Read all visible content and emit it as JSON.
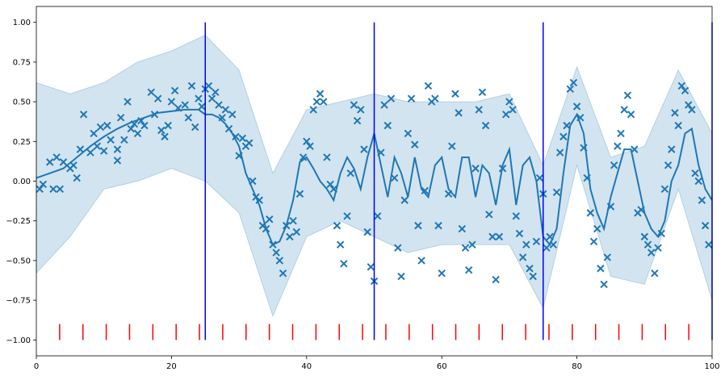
{
  "chart_data": {
    "type": "scatter",
    "xlim": [
      0,
      100
    ],
    "ylim": [
      -1.1,
      1.1
    ],
    "xticks": [
      0,
      20,
      40,
      60,
      80,
      100
    ],
    "yticks": [
      {
        "value": 1,
        "label": "1.00"
      },
      {
        "value": 0.75,
        "label": "0.75"
      },
      {
        "value": 0.5,
        "label": "0.50"
      },
      {
        "value": 0.25,
        "label": "0.25"
      },
      {
        "value": 0,
        "label": "0.00"
      },
      {
        "value": -0.25,
        "label": "−0.25"
      },
      {
        "value": -0.5,
        "label": "−0.50"
      },
      {
        "value": -0.75,
        "label": "−0.75"
      },
      {
        "value": -1,
        "label": "−1.00"
      }
    ],
    "band": {
      "color": "#1f77b4",
      "x": [
        0,
        5,
        10,
        15,
        20,
        25,
        30,
        35,
        40,
        45,
        50,
        55,
        60,
        65,
        70,
        75,
        80,
        85,
        90,
        95,
        100
      ],
      "upper": [
        0.62,
        0.55,
        0.62,
        0.75,
        0.82,
        0.92,
        0.7,
        0.05,
        0.45,
        0.5,
        0.55,
        0.5,
        0.5,
        0.5,
        0.55,
        0.1,
        0.72,
        0.15,
        0.22,
        0.7,
        0.3
      ],
      "lower": [
        -0.58,
        -0.35,
        -0.05,
        0.0,
        0.08,
        0.0,
        -0.2,
        -0.85,
        -0.35,
        -0.25,
        -0.35,
        -0.45,
        -0.4,
        -0.4,
        -0.4,
        -0.8,
        0.1,
        -0.6,
        -0.65,
        -0.05,
        -0.75
      ]
    },
    "mean": {
      "color": "#1f77b4",
      "x": [
        0,
        2,
        4,
        6,
        8,
        10,
        12,
        14,
        16,
        18,
        20,
        22,
        24,
        25,
        26,
        27,
        28,
        29,
        30,
        31,
        32,
        33,
        34,
        35,
        36,
        37,
        38,
        39,
        40,
        41,
        42,
        43,
        44,
        45,
        46,
        47,
        48,
        49,
        50,
        51,
        52,
        53,
        54,
        55,
        56,
        57,
        58,
        59,
        60,
        61,
        62,
        63,
        64,
        65,
        66,
        67,
        68,
        69,
        70,
        71,
        72,
        73,
        74,
        75,
        76,
        77,
        78,
        79,
        80,
        81,
        82,
        83,
        84,
        85,
        86,
        87,
        88,
        89,
        90,
        91,
        92,
        93,
        94,
        95,
        96,
        97,
        98,
        99,
        100
      ],
      "y": [
        0.02,
        0.05,
        0.08,
        0.15,
        0.22,
        0.28,
        0.33,
        0.37,
        0.4,
        0.43,
        0.44,
        0.45,
        0.45,
        0.42,
        0.42,
        0.4,
        0.36,
        0.3,
        0.22,
        0.05,
        -0.05,
        -0.15,
        -0.3,
        -0.4,
        -0.38,
        -0.28,
        -0.12,
        0.12,
        0.15,
        0.08,
        0.0,
        -0.05,
        -0.12,
        0.05,
        0.15,
        0.08,
        -0.05,
        0.15,
        0.3,
        0.1,
        -0.1,
        0.15,
        0.05,
        -0.1,
        0.15,
        -0.05,
        -0.1,
        0.1,
        0.15,
        -0.05,
        -0.1,
        0.15,
        0.15,
        -0.1,
        0.1,
        0.05,
        -0.15,
        0.1,
        0.2,
        -0.15,
        0.1,
        0.15,
        0.0,
        -0.35,
        -0.4,
        -0.3,
        0.05,
        0.35,
        0.42,
        0.3,
        -0.05,
        -0.2,
        -0.3,
        -0.1,
        0.05,
        0.2,
        0.2,
        0.0,
        -0.2,
        -0.3,
        -0.35,
        -0.25,
        0.0,
        0.1,
        0.3,
        0.33,
        0.1,
        -0.05,
        -0.12
      ]
    },
    "points": {
      "color": "#1f77b4",
      "x": [
        0.5,
        1,
        2,
        2.5,
        3,
        3.5,
        4,
        5,
        5.5,
        6,
        6.5,
        7,
        8,
        8.5,
        9,
        9.5,
        10,
        10.5,
        11,
        12,
        12,
        12.5,
        13,
        13.5,
        14,
        14.5,
        15,
        15.5,
        16,
        17,
        17.5,
        18,
        18.5,
        19,
        19.5,
        20,
        20.5,
        21,
        22,
        22.5,
        23,
        23.5,
        24,
        24.5,
        25,
        25.5,
        26,
        26.5,
        27,
        27.5,
        28,
        28.5,
        29,
        29.5,
        30,
        30.5,
        31,
        31.5,
        32,
        32.5,
        33,
        33.5,
        34,
        34.5,
        35,
        35.5,
        36,
        36.5,
        37,
        37.5,
        38,
        38.5,
        39,
        39.5,
        40,
        40.5,
        41,
        41.5,
        42,
        42.5,
        43,
        43.5,
        44,
        44.5,
        45,
        45.5,
        46,
        46.5,
        47,
        47.5,
        48,
        48.5,
        49,
        49.5,
        50,
        50.5,
        51,
        51.5,
        52,
        52.5,
        53,
        53.5,
        54,
        54.5,
        55,
        55.5,
        56,
        56.5,
        57,
        57.5,
        58,
        58.5,
        59,
        59.5,
        60,
        61,
        61.5,
        62,
        62.5,
        63,
        63.5,
        64,
        64.5,
        65,
        65.5,
        66,
        66.5,
        67,
        67.5,
        68,
        68.5,
        69,
        69.5,
        70,
        70.5,
        71,
        71.5,
        72,
        72.5,
        73,
        73.5,
        74,
        74.5,
        75,
        75.5,
        76,
        76.5,
        77,
        77.5,
        78,
        78.5,
        79,
        79.5,
        80,
        80.5,
        81,
        81.5,
        82,
        82.5,
        83,
        83.5,
        84,
        84.5,
        85,
        85.5,
        86,
        86.5,
        87,
        87.5,
        88,
        88.5,
        89,
        89.5,
        90,
        90.5,
        91,
        91.5,
        92,
        92.5,
        93,
        93.5,
        94,
        94.5,
        95,
        95.5,
        96,
        96.5,
        97,
        97.5,
        98,
        98.5,
        99,
        99.5
      ],
      "y": [
        -0.05,
        -0.02,
        0.12,
        -0.05,
        0.15,
        -0.05,
        0.12,
        0.08,
        0.1,
        0.02,
        0.2,
        0.42,
        0.18,
        0.3,
        0.22,
        0.34,
        0.19,
        0.35,
        0.26,
        0.13,
        0.2,
        0.4,
        0.26,
        0.5,
        0.33,
        0.36,
        0.3,
        0.38,
        0.35,
        0.56,
        0.42,
        0.52,
        0.32,
        0.28,
        0.35,
        0.5,
        0.57,
        0.46,
        0.48,
        0.4,
        0.6,
        0.34,
        0.52,
        0.47,
        0.58,
        0.6,
        0.52,
        0.56,
        0.48,
        0.4,
        0.45,
        0.33,
        0.42,
        0.28,
        0.16,
        0.27,
        0.22,
        0.24,
        0.0,
        -0.1,
        -0.12,
        -0.28,
        -0.3,
        -0.24,
        -0.4,
        -0.45,
        -0.5,
        -0.58,
        -0.28,
        -0.35,
        -0.25,
        -0.32,
        -0.08,
        0.15,
        0.25,
        0.22,
        0.45,
        0.5,
        0.55,
        0.5,
        0.15,
        -0.02,
        -0.05,
        -0.28,
        -0.4,
        -0.52,
        -0.22,
        0.05,
        0.48,
        0.38,
        0.45,
        0.2,
        -0.32,
        -0.54,
        -0.63,
        -0.22,
        0.18,
        0.48,
        0.35,
        0.52,
        0.02,
        -0.42,
        -0.6,
        -0.12,
        0.3,
        0.52,
        0.23,
        -0.28,
        -0.5,
        -0.06,
        0.6,
        0.5,
        0.52,
        -0.28,
        -0.58,
        -0.08,
        0.22,
        0.55,
        0.43,
        -0.3,
        -0.42,
        -0.56,
        -0.4,
        0.08,
        0.45,
        0.56,
        0.35,
        -0.21,
        -0.35,
        -0.62,
        -0.35,
        0.08,
        0.42,
        0.5,
        0.45,
        -0.22,
        -0.33,
        -0.48,
        -0.4,
        -0.55,
        -0.6,
        -0.38,
        0.02,
        -0.08,
        -0.42,
        -0.35,
        -0.4,
        -0.07,
        0.18,
        0.28,
        0.35,
        0.58,
        0.62,
        0.47,
        0.4,
        0.21,
        0.02,
        -0.2,
        -0.38,
        -0.3,
        -0.55,
        -0.65,
        -0.48,
        -0.16,
        0.1,
        0.22,
        0.3,
        0.45,
        0.54,
        0.42,
        0.2,
        -0.2,
        -0.18,
        -0.35,
        -0.4,
        -0.45,
        -0.58,
        -0.42,
        -0.33,
        -0.05,
        0.1,
        0.2,
        0.43,
        0.35,
        0.6,
        0.57,
        0.48,
        0.45,
        0.05,
        0.0,
        -0.12,
        -0.28,
        -0.4
      ]
    },
    "vlines": {
      "color": "#0000ff",
      "x": [
        25,
        50,
        75,
        100
      ],
      "ymin": -1,
      "ymax": 1
    },
    "rug": {
      "color": "#ff0000",
      "x": [
        3.448,
        6.897,
        10.345,
        13.793,
        17.241,
        20.69,
        24.138,
        27.586,
        31.034,
        34.483,
        37.931,
        41.379,
        44.828,
        48.276,
        51.724,
        55.172,
        58.621,
        62.069,
        65.517,
        68.966,
        72.414,
        75.862,
        79.31,
        82.759,
        86.207,
        89.655,
        93.103,
        96.552
      ],
      "ymin": -1,
      "ymax": -0.9
    }
  }
}
